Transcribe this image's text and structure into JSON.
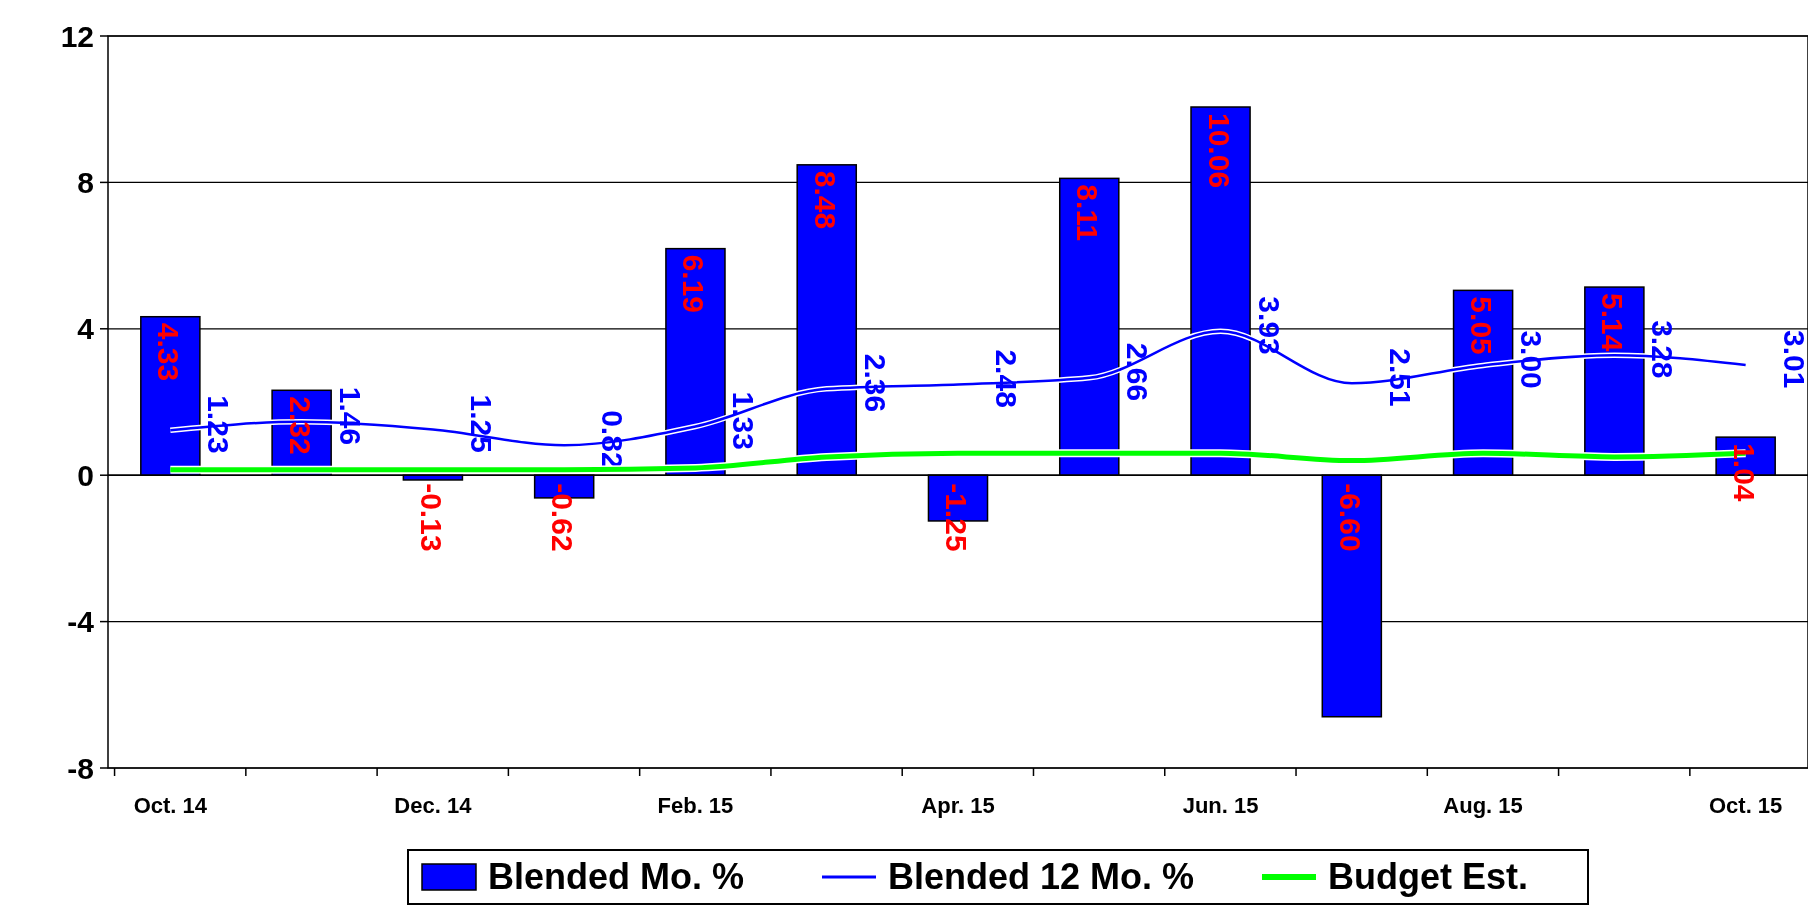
{
  "chart_data": {
    "type": "bar",
    "categories": [
      "Oct. 14",
      null,
      "Dec. 14",
      null,
      "Feb. 15",
      null,
      "Apr. 15",
      null,
      "Jun. 15",
      null,
      "Aug. 15",
      null,
      "Oct. 15"
    ],
    "series": [
      {
        "name": "Blended Mo. %",
        "color": "#0000ff",
        "values": [
          4.33,
          2.32,
          -0.13,
          -0.62,
          6.19,
          8.48,
          -1.25,
          8.11,
          10.06,
          -6.6,
          5.05,
          5.14,
          1.04
        ],
        "value_labels": [
          "4.33",
          "2.32",
          "-0.13",
          "-0.62",
          "6.19",
          "8.48",
          "-1.25",
          "8.11",
          "10.06",
          "-6.60",
          "5.05",
          "5.14",
          "1.04"
        ]
      },
      {
        "name": "Blended 12 Mo. %",
        "type": "line",
        "color": "#0000ff",
        "values": [
          1.23,
          1.46,
          1.25,
          0.82,
          1.33,
          2.36,
          2.48,
          2.66,
          3.93,
          2.51,
          3.0,
          3.28,
          3.01
        ],
        "value_labels": [
          "1.23",
          "1.46",
          "1.25",
          "0.82",
          "1.33",
          "2.36",
          "2.48",
          "2.66",
          "3.93",
          "2.51",
          "3.00",
          "3.28",
          "3.01"
        ]
      },
      {
        "name": "Budget Est.",
        "type": "line",
        "color": "#00ff00",
        "values": [
          0.15,
          0.15,
          0.15,
          0.15,
          0.2,
          0.5,
          0.6,
          0.6,
          0.6,
          0.4,
          0.6,
          0.5,
          0.6
        ]
      }
    ],
    "ylim": [
      -8,
      12
    ],
    "yticks": [
      -8,
      -4,
      0,
      4,
      8,
      12
    ],
    "grid": "y",
    "legend": "bottom",
    "marker": "none"
  }
}
